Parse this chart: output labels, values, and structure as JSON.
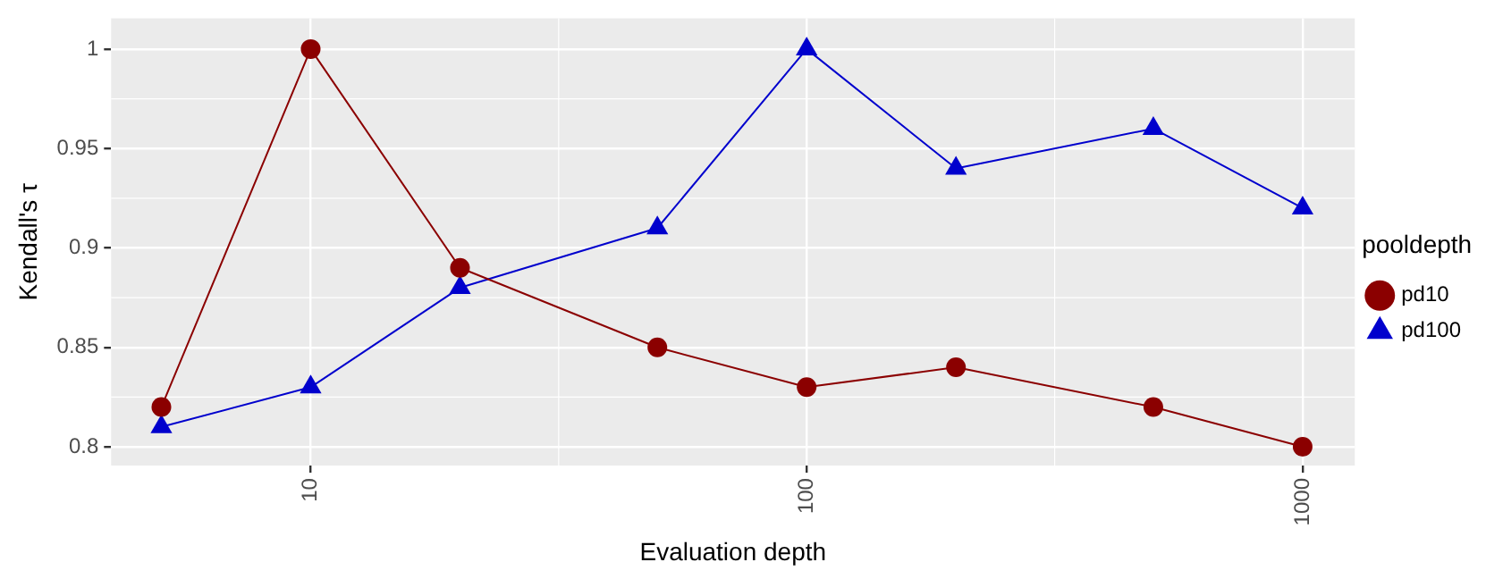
{
  "chart_data": {
    "type": "line",
    "xlabel": "Evaluation depth",
    "ylabel": "Kendall's τ",
    "legend_title": "pooldepth",
    "legend": "right",
    "grid": true,
    "log": "x",
    "x": [
      5,
      10,
      20,
      50,
      100,
      200,
      500,
      1000
    ],
    "xlim": [
      3.96,
      1274
    ],
    "xticks": [
      10,
      100,
      1000
    ],
    "ylim": [
      0.7906,
      1.0155
    ],
    "yticks": [
      0.8,
      0.85,
      0.9,
      0.95,
      1
    ],
    "series": [
      {
        "name": "pd10",
        "color": "#8b0000",
        "marker": "circle",
        "values": [
          0.82,
          1.0,
          0.89,
          0.85,
          0.83,
          0.84,
          0.82,
          0.8
        ]
      },
      {
        "name": "pd100",
        "color": "#0000cd",
        "marker": "triangle",
        "values": [
          0.81,
          0.83,
          0.88,
          0.91,
          1.0,
          0.94,
          0.96,
          0.92
        ]
      }
    ]
  }
}
